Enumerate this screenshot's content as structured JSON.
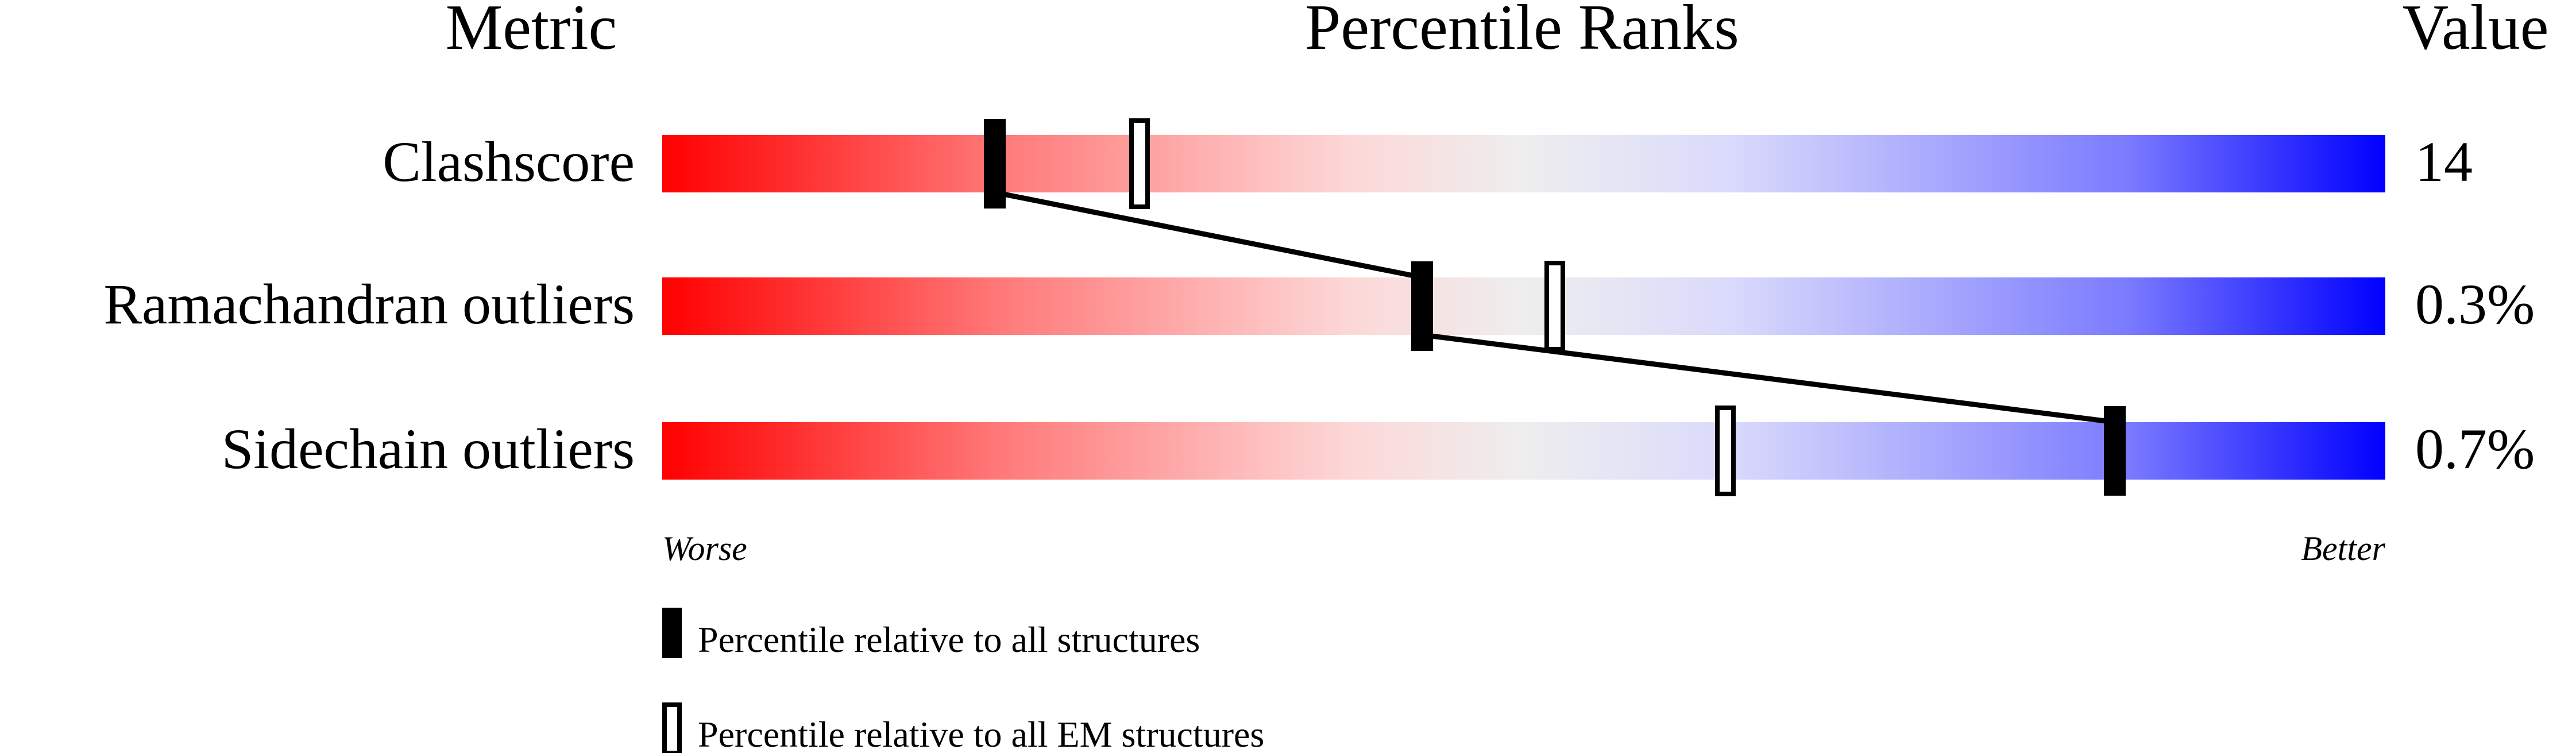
{
  "chart_data": {
    "type": "percentile-bar",
    "headers": {
      "metric": "Metric",
      "title": "Percentile Ranks",
      "value": "Value"
    },
    "xlim": [
      0,
      100
    ],
    "axis_labels": {
      "left": "Worse",
      "right": "Better"
    },
    "gradient_colors": [
      "#ff0000",
      "#ff7b7b",
      "#fdd8d8",
      "#eeeeee",
      "#dadafc",
      "#7b7bff",
      "#0000ff"
    ],
    "metrics": [
      {
        "name": "Clashscore",
        "value": "14",
        "percentile_all": 19.3,
        "percentile_em": 27.7
      },
      {
        "name": "Ramachandran outliers",
        "value": "0.3%",
        "percentile_all": 44.1,
        "percentile_em": 51.8
      },
      {
        "name": "Sidechain outliers",
        "value": "0.7%",
        "percentile_all": 84.3,
        "percentile_em": 61.7
      }
    ],
    "legend": [
      {
        "marker": "filled",
        "label": "Percentile relative to all structures"
      },
      {
        "marker": "open",
        "label": "Percentile relative to all EM structures"
      }
    ]
  }
}
